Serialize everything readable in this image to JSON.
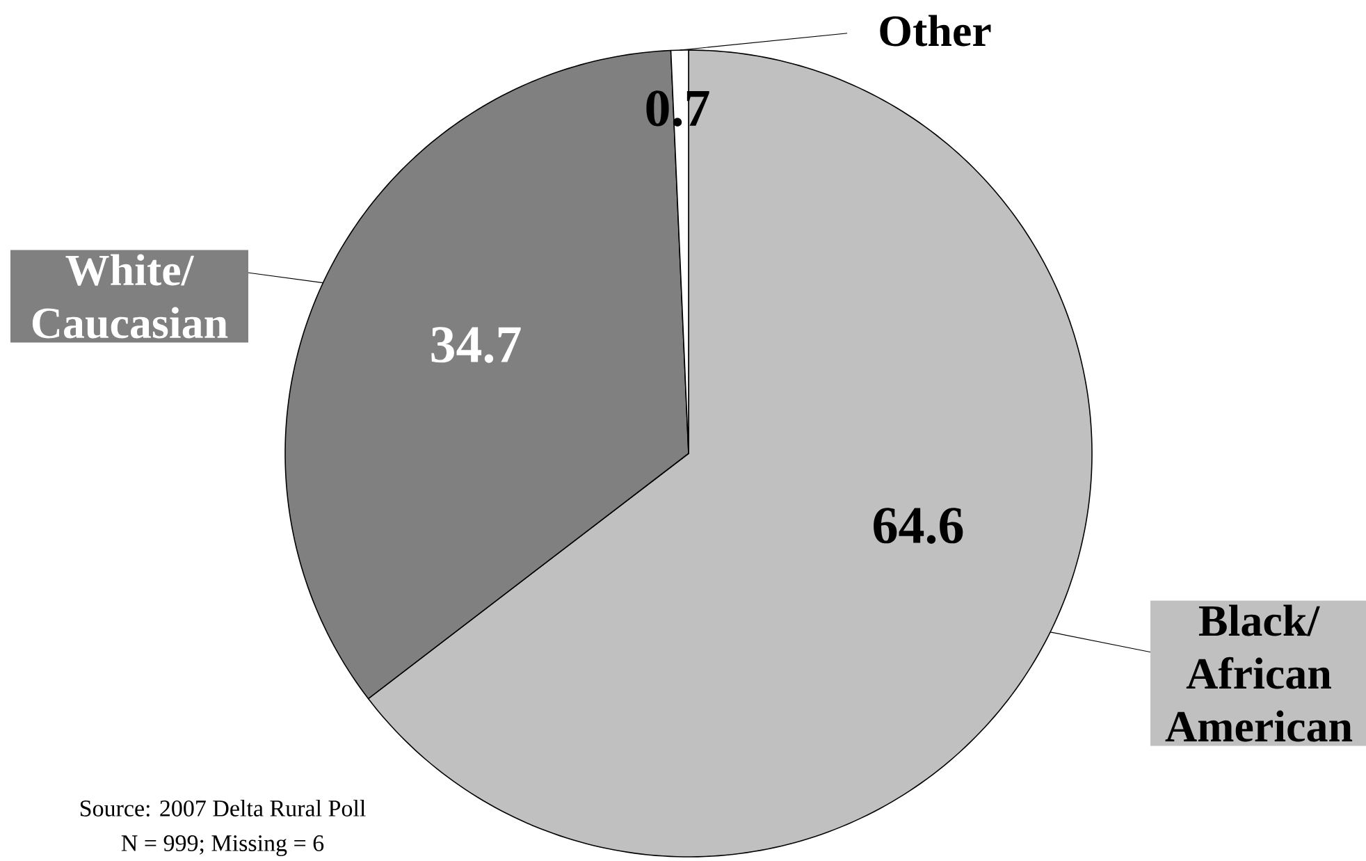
{
  "chart_data": {
    "type": "pie",
    "categories": [
      "Black/ African American",
      "White/ Caucasian",
      "Other"
    ],
    "values": [
      64.6,
      34.7,
      0.7
    ],
    "colors": [
      "#c0c0c0",
      "#808080",
      "#ffffff"
    ],
    "data_labels": true,
    "annotations": [
      "Source: 2007 Delta Rural Poll",
      "N = 999; Missing = 6"
    ]
  }
}
